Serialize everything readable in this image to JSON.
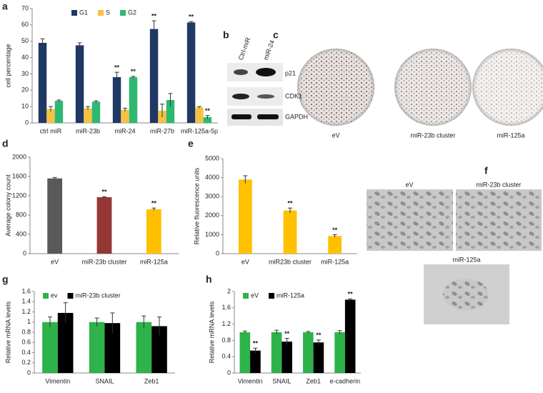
{
  "panel_letters": [
    "a",
    "b",
    "c",
    "d",
    "e",
    "f",
    "g",
    "h"
  ],
  "chart_data": [
    {
      "type": "bar",
      "y_label": "cell percentage",
      "legend": "top",
      "categories": [
        "ctrl miR",
        "miR-23b",
        "miR-24",
        "miR-27b",
        "miR-125a-5p"
      ],
      "series": [
        {
          "name": "G1",
          "color": "#1f3864",
          "values": [
            49,
            47.5,
            28,
            57.5,
            61.5
          ],
          "errors": [
            2.5,
            1.5,
            3,
            5,
            0.5
          ],
          "significance": [
            null,
            null,
            "**",
            "**",
            "**"
          ]
        },
        {
          "name": "S",
          "color": "#f5c242",
          "values": [
            8.5,
            9,
            8,
            7.5,
            9.5
          ],
          "errors": [
            1.5,
            1,
            1,
            4,
            0.5
          ],
          "significance": [
            null,
            null,
            null,
            null,
            null
          ]
        },
        {
          "name": "G2",
          "color": "#2eb872",
          "values": [
            13.5,
            13,
            28,
            14,
            3.5
          ],
          "errors": [
            0.5,
            0.5,
            0.5,
            4,
            1
          ],
          "significance": [
            null,
            null,
            "**",
            null,
            "**"
          ]
        }
      ],
      "ylim": [
        0,
        70
      ],
      "yticks": [
        0,
        10,
        20,
        30,
        40,
        50,
        60,
        70
      ]
    },
    {
      "type": "bar",
      "y_label": "Average colony count",
      "categories": [
        "eV",
        "miR-23b cluster",
        "miR-125a"
      ],
      "values": [
        1560,
        1170,
        920
      ],
      "errors": [
        20,
        10,
        25
      ],
      "colors": [
        "#595959",
        "#953735",
        "#ffc000"
      ],
      "significance": [
        null,
        "**",
        "**"
      ],
      "ylim": [
        0,
        2000
      ],
      "yticks": [
        0,
        400,
        800,
        1200,
        1600,
        2000
      ]
    },
    {
      "type": "bar",
      "y_label": "Relative fluorescence units",
      "categories": [
        "eV",
        "miR23b cluster",
        "miR-125a"
      ],
      "values": [
        3900,
        2270,
        930
      ],
      "errors": [
        200,
        130,
        70
      ],
      "colors": [
        "#ffc000",
        "#ffc000",
        "#ffc000"
      ],
      "significance": [
        null,
        "**",
        "**"
      ],
      "ylim": [
        0,
        5000
      ],
      "yticks": [
        0,
        1000,
        2000,
        3000,
        4000,
        5000
      ]
    },
    {
      "type": "bar",
      "y_label": "Relative mRNA  levels",
      "legend": "top-left",
      "categories": [
        "Vimentin",
        "SNAIL",
        "Zeb1"
      ],
      "series": [
        {
          "name": "ev",
          "color": "#2db34a",
          "values": [
            1,
            1,
            1
          ],
          "errors": [
            0.1,
            0.08,
            0.12
          ],
          "significance": [
            null,
            null,
            null
          ]
        },
        {
          "name": "miR-23b cluster",
          "color": "#000000",
          "values": [
            1.18,
            0.98,
            0.92
          ],
          "errors": [
            0.2,
            0.2,
            0.18
          ],
          "significance": [
            null,
            null,
            null
          ]
        }
      ],
      "ylim": [
        0,
        1.6
      ],
      "yticks": [
        0,
        0.2,
        0.4,
        0.6,
        0.8,
        1,
        1.2,
        1.4,
        1.6
      ]
    },
    {
      "type": "bar",
      "y_label": "Relative mRNA  levels",
      "legend": "top-left",
      "categories": [
        "Vimentin",
        "SNAIL",
        "Zeb1",
        "e-cadherin"
      ],
      "series": [
        {
          "name": "eV",
          "color": "#2db34a",
          "values": [
            1,
            1,
            1,
            1
          ],
          "errors": [
            0.03,
            0.05,
            0.02,
            0.04
          ],
          "significance": [
            null,
            null,
            null,
            null
          ]
        },
        {
          "name": "miR-125a",
          "color": "#000000",
          "values": [
            0.55,
            0.77,
            0.75,
            1.8
          ],
          "errors": [
            0.06,
            0.08,
            0.06,
            0.02
          ],
          "significance": [
            "**",
            "**",
            "**",
            "**"
          ]
        }
      ],
      "ylim": [
        0,
        2
      ],
      "yticks": [
        0,
        0.4,
        0.8,
        1.2,
        1.6,
        2
      ]
    }
  ],
  "blot": {
    "columns": [
      "Ctrl-miR",
      "miR-24"
    ],
    "rows": [
      "p21",
      "CDK1",
      "GAPDH"
    ]
  },
  "colony_images": [
    "eV",
    "miR-23b cluster",
    "miR-125a"
  ],
  "cell_images": [
    "eV",
    "miR-23b cluster",
    "miR-125a"
  ]
}
